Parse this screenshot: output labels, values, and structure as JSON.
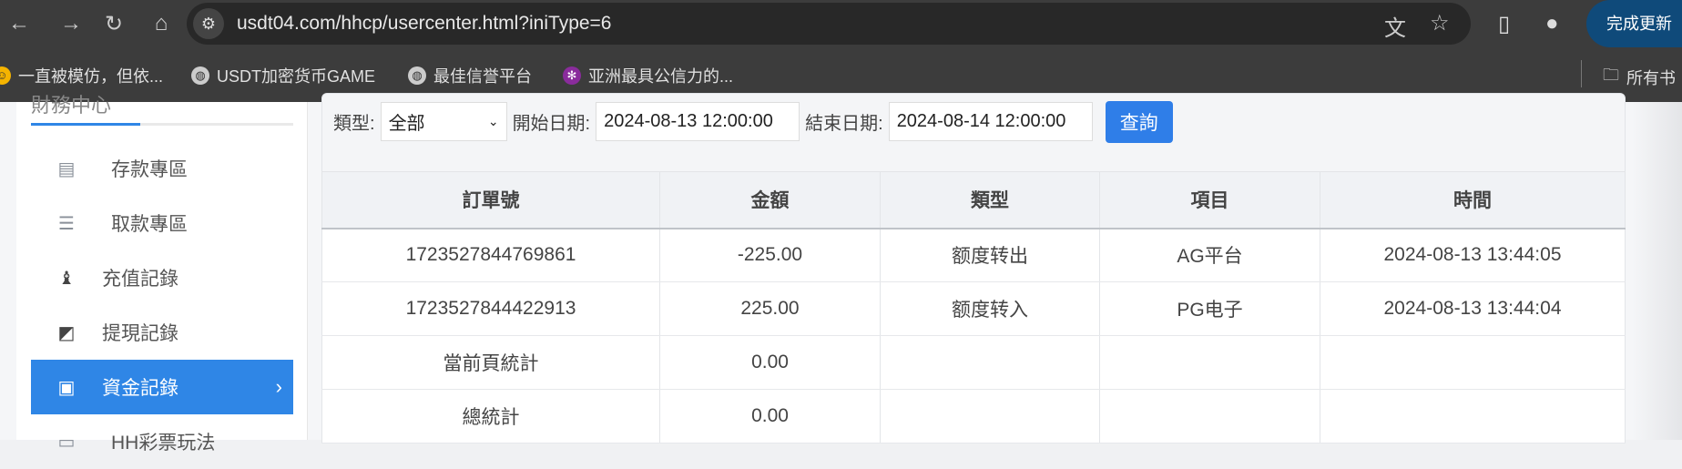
{
  "browser": {
    "url": "usdt04.com/hhcp/usercenter.html?iniType=6",
    "update_label": "完成更新",
    "bookmarks": [
      "一直被模仿，但依...",
      "USDT加密货币GAME",
      "最佳信誉平台",
      "亚洲最具公信力的..."
    ],
    "all_bookmarks": "所有书"
  },
  "sidebar": {
    "title": "財務中心",
    "items": [
      {
        "label": "存款專區",
        "icon": "card-icon"
      },
      {
        "label": "取款專區",
        "icon": "hand-money-icon"
      },
      {
        "label": "充值記錄",
        "icon": "money-bag-icon"
      },
      {
        "label": "提現記錄",
        "icon": "wallet-icon"
      },
      {
        "label": "資金記錄",
        "icon": "cash-icon",
        "active": true
      },
      {
        "label": "HH彩票玩法",
        "icon": "ticket-icon"
      }
    ]
  },
  "filter": {
    "type_label": "類型:",
    "type_value": "全部",
    "start_label": "開始日期:",
    "start_value": "2024-08-13 12:00:00",
    "end_label": "結束日期:",
    "end_value": "2024-08-14 12:00:00",
    "query_label": "查詢"
  },
  "table": {
    "headers": [
      "訂單號",
      "金額",
      "類型",
      "項目",
      "時間"
    ],
    "rows": [
      [
        "1723527844769861",
        "-225.00",
        "额度转出",
        "AG平台",
        "2024-08-13 13:44:05"
      ],
      [
        "1723527844422913",
        "225.00",
        "额度转入",
        "PG电子",
        "2024-08-13 13:44:04"
      ],
      [
        "當前頁統計",
        "0.00",
        "",
        "",
        ""
      ],
      [
        "總統計",
        "0.00",
        "",
        "",
        ""
      ]
    ]
  },
  "colors": {
    "accent": "#2f86e6"
  }
}
